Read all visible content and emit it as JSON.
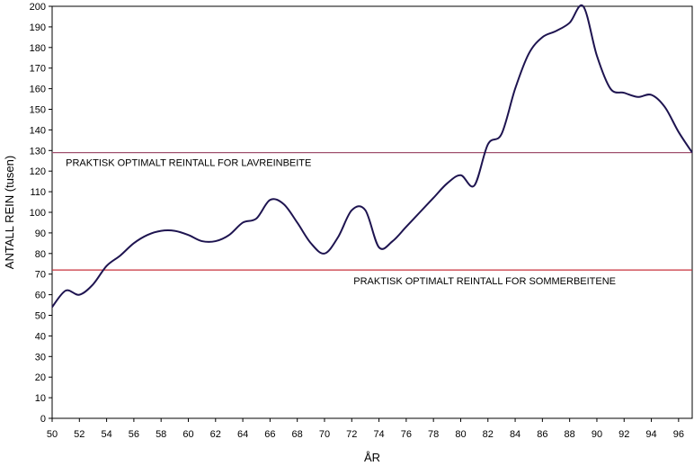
{
  "chart_data": {
    "type": "line",
    "xlabel": "ÅR",
    "ylabel": "ANTALL REIN (tusen)",
    "xlim": [
      50,
      97
    ],
    "ylim": [
      0,
      200
    ],
    "grid": false,
    "x_ticks": [
      "50",
      "52",
      "54",
      "56",
      "58",
      "60",
      "62",
      "64",
      "66",
      "68",
      "70",
      "72",
      "74",
      "76",
      "78",
      "80",
      "82",
      "84",
      "86",
      "88",
      "90",
      "92",
      "94",
      "96"
    ],
    "y_ticks": [
      "0",
      "10",
      "20",
      "30",
      "40",
      "50",
      "60",
      "70",
      "80",
      "90",
      "100",
      "110",
      "120",
      "130",
      "140",
      "150",
      "160",
      "170",
      "180",
      "190",
      "200"
    ],
    "colors": {
      "line": "#1e1450",
      "ref_upper": "#a0506e",
      "ref_lower": "#c8323c"
    },
    "reference_lines": [
      {
        "y": 129,
        "label": "PRAKTISK OPTIMALT REINTALL FOR LAVREINBEITE",
        "label_x": 51
      },
      {
        "y": 72,
        "label": "PRAKTISK OPTIMALT REINTALL FOR SOMMERBEITENE",
        "label_x": 72
      }
    ],
    "series": [
      {
        "x": [
          50,
          51,
          52,
          53,
          54,
          55,
          56,
          57,
          58,
          59,
          60,
          61,
          62,
          63,
          64,
          65,
          66,
          67,
          68,
          69,
          70,
          71,
          72,
          73,
          74,
          75,
          76,
          77,
          78,
          79,
          80,
          81,
          82,
          83,
          84,
          85,
          86,
          87,
          88,
          89,
          90,
          91,
          92,
          93,
          94,
          95,
          96,
          97
        ],
        "values": [
          54,
          62,
          60,
          65,
          74,
          79,
          85,
          89,
          91,
          91,
          89,
          86,
          86,
          89,
          95,
          97,
          106,
          104,
          95,
          85,
          80,
          88,
          101,
          101,
          83,
          86,
          93,
          100,
          107,
          114,
          118,
          113,
          133,
          138,
          160,
          177,
          185,
          188,
          192,
          200,
          176,
          160,
          158,
          156,
          157,
          151,
          139,
          129
        ]
      }
    ]
  }
}
